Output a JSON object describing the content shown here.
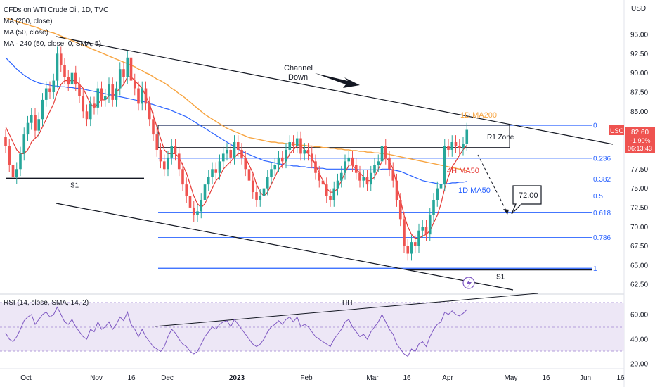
{
  "header": {
    "title": "CFDs on WTI Crude Oil, 1D, TVC",
    "indicators": [
      "MA (200, close)",
      "MA (50, close)",
      "MA · 240 (50, close, 0, SMA, 5)"
    ],
    "rsi_label": "RSI (14, close, SMA, 14, 2)"
  },
  "colors": {
    "up": "#26a69a",
    "down": "#ef5350",
    "ma200": "#f7a440",
    "ma50": "#2962ff",
    "ma4h": "#e53935",
    "fib": "#2962ff",
    "rsi": "#7e57c2",
    "rsi_band": "#ede7f6"
  },
  "annotations": {
    "channel": "Channel\nDown",
    "channel_line1": "Channel",
    "channel_line2": "Down",
    "r1_zone": "R1 Zone",
    "s1_left": "S1",
    "s1_right": "S1",
    "ma200_1d": "1D MA200",
    "ma50_4h": "4H MA50",
    "ma50_1d": "1D MA50",
    "target": "72.00",
    "hh": "HH"
  },
  "price_badge": {
    "symbol": "USOIL",
    "price": "82.60",
    "change": "-1.90%",
    "timer": "06:13:43"
  },
  "chart_data": {
    "type": "candlestick",
    "y_axis": {
      "unit": "USD",
      "ticks": [
        "95.00",
        "92.50",
        "90.00",
        "87.50",
        "85.00",
        "82.50",
        "80.00",
        "77.50",
        "75.00",
        "72.50",
        "70.00",
        "67.50",
        "65.00",
        "62.50"
      ]
    },
    "x_axis": {
      "ticks": [
        "Oct",
        "Nov",
        "16",
        "Dec",
        "2023",
        "Feb",
        "Mar",
        "16",
        "Apr",
        "May",
        "16",
        "Jun",
        "16"
      ]
    },
    "fib_levels": [
      {
        "label": "0",
        "value": 83.2
      },
      {
        "label": "0.236",
        "value": 78.9
      },
      {
        "label": "0.382",
        "value": 76.2
      },
      {
        "label": "0.5",
        "value": 74.0
      },
      {
        "label": "0.618",
        "value": 71.8
      },
      {
        "label": "0.786",
        "value": 68.6
      },
      {
        "label": "1",
        "value": 64.6
      }
    ],
    "r1_zone": [
      80.3,
      83.2
    ],
    "s1_left_level": 76.3,
    "s1_right_level": 64.4,
    "target_price": 72.0,
    "closes": [
      80.5,
      78.0,
      76.5,
      77.5,
      79.5,
      82.0,
      83.5,
      84.5,
      82.5,
      84.0,
      86.5,
      88.0,
      87.5,
      89.0,
      92.5,
      91.0,
      89.5,
      88.5,
      90.0,
      88.5,
      87.0,
      85.0,
      84.0,
      86.0,
      85.5,
      88.0,
      86.5,
      87.0,
      88.5,
      86.5,
      88.0,
      90.5,
      89.5,
      92.0,
      89.0,
      88.0,
      86.0,
      88.0,
      86.0,
      84.0,
      82.0,
      80.0,
      78.5,
      77.5,
      79.0,
      80.5,
      79.5,
      77.5,
      75.5,
      74.0,
      72.5,
      71.5,
      72.0,
      73.5,
      75.5,
      76.5,
      77.5,
      77.0,
      78.5,
      79.5,
      80.0,
      79.0,
      81.0,
      80.0,
      79.0,
      77.5,
      76.0,
      74.5,
      73.5,
      74.0,
      75.0,
      76.5,
      77.5,
      78.0,
      79.0,
      78.5,
      80.0,
      81.0,
      80.5,
      81.5,
      79.5,
      80.0,
      79.5,
      78.5,
      77.0,
      76.0,
      75.5,
      74.0,
      73.5,
      75.0,
      76.0,
      77.0,
      78.5,
      79.0,
      78.0,
      77.0,
      76.0,
      76.5,
      75.5,
      77.0,
      78.0,
      78.5,
      80.5,
      79.0,
      77.5,
      76.0,
      73.5,
      71.0,
      67.5,
      66.5,
      68.0,
      67.5,
      69.5,
      70.0,
      69.0,
      71.5,
      73.5,
      75.0,
      75.5,
      80.5,
      80.0,
      81.0,
      80.5,
      80.2,
      80.8,
      82.6
    ],
    "series": [
      {
        "name": "MA (200, close)",
        "values": [
          97.2,
          97.0,
          96.9,
          96.7,
          96.6,
          96.4,
          96.3,
          96.1,
          96.0,
          95.8,
          95.6,
          95.5,
          95.3,
          95.2,
          95.0,
          94.8,
          94.6,
          94.4,
          94.2,
          94.0,
          93.8,
          93.6,
          93.4,
          93.2,
          93.0,
          92.8,
          92.6,
          92.4,
          92.2,
          92.0,
          91.8,
          91.6,
          91.4,
          91.2,
          91.0,
          90.8,
          90.5,
          90.3,
          90.0,
          89.8,
          89.5,
          89.2,
          89.0,
          88.7,
          88.4,
          88.0,
          87.7,
          87.3,
          87.0,
          86.6,
          86.2,
          85.8,
          85.4,
          85.0,
          84.6,
          84.3,
          84.0,
          83.7,
          83.4,
          83.1,
          82.8,
          82.6,
          82.4,
          82.2,
          82.0,
          81.8,
          81.6,
          81.5,
          81.4,
          81.3,
          81.2,
          81.1,
          81.0,
          81.0,
          80.9,
          80.9,
          80.8,
          80.8,
          80.7,
          80.7,
          80.6,
          80.6,
          80.5,
          80.5,
          80.4,
          80.4,
          80.3,
          80.3,
          80.2,
          80.2,
          80.1,
          80.1,
          80.0,
          80.0,
          79.9,
          79.9,
          79.8,
          79.8,
          79.7,
          79.7,
          79.6,
          79.6,
          79.5,
          79.5,
          79.4,
          79.3,
          79.2,
          79.1,
          79.0,
          78.9,
          78.8,
          78.7,
          78.6,
          78.5,
          78.4,
          78.3,
          78.2,
          78.1,
          78.0,
          77.9,
          77.8,
          77.7,
          77.6,
          77.5,
          77.4,
          77.3
        ]
      },
      {
        "name": "MA (50, close)",
        "values": [
          92.0,
          91.5,
          91.0,
          90.5,
          90.1,
          89.7,
          89.4,
          89.1,
          88.9,
          88.7,
          88.6,
          88.5,
          88.4,
          88.3,
          88.3,
          88.2,
          88.2,
          88.1,
          88.1,
          88.0,
          88.0,
          87.9,
          87.8,
          87.7,
          87.6,
          87.5,
          87.4,
          87.3,
          87.2,
          87.1,
          87.0,
          86.9,
          86.8,
          86.7,
          86.6,
          86.5,
          86.4,
          86.3,
          86.2,
          86.0,
          85.9,
          85.7,
          85.6,
          85.4,
          85.3,
          85.1,
          84.9,
          84.7,
          84.5,
          84.3,
          84.0,
          83.7,
          83.4,
          83.1,
          82.8,
          82.5,
          82.2,
          81.9,
          81.6,
          81.3,
          81.0,
          80.7,
          80.4,
          80.1,
          79.8,
          79.6,
          79.4,
          79.2,
          79.0,
          78.8,
          78.6,
          78.5,
          78.4,
          78.3,
          78.2,
          78.1,
          78.0,
          78.0,
          77.9,
          77.9,
          77.8,
          77.8,
          77.7,
          77.7,
          77.6,
          77.6,
          77.6,
          77.5,
          77.5,
          77.5,
          77.5,
          77.5,
          77.5,
          77.5,
          77.5,
          77.5,
          77.4,
          77.4,
          77.4,
          77.4,
          77.4,
          77.4,
          77.5,
          77.5,
          77.5,
          77.4,
          77.3,
          77.2,
          77.0,
          76.8,
          76.6,
          76.4,
          76.2,
          76.0,
          75.9,
          75.8,
          75.7,
          75.6,
          75.5,
          75.6,
          75.6,
          75.7,
          75.7,
          75.8,
          75.8,
          75.9
        ]
      },
      {
        "name": "4H MA50",
        "values": [
          83.0,
          82.0,
          81.0,
          80.0,
          79.5,
          79.5,
          80.0,
          81.0,
          81.5,
          82.0,
          83.0,
          84.0,
          85.0,
          86.0,
          87.5,
          88.5,
          89.0,
          89.0,
          89.0,
          89.0,
          88.5,
          88.0,
          87.0,
          86.0,
          85.5,
          86.0,
          86.5,
          86.5,
          87.0,
          87.0,
          87.5,
          88.0,
          88.5,
          89.5,
          89.5,
          89.0,
          88.5,
          88.0,
          87.0,
          86.0,
          84.5,
          83.0,
          81.5,
          80.0,
          79.5,
          79.5,
          79.5,
          79.0,
          78.0,
          77.0,
          75.5,
          74.0,
          73.0,
          72.5,
          73.0,
          74.0,
          75.0,
          76.0,
          76.5,
          77.5,
          78.0,
          78.5,
          79.0,
          79.5,
          79.5,
          79.0,
          78.0,
          77.0,
          75.5,
          74.5,
          74.0,
          74.5,
          75.5,
          76.5,
          77.5,
          78.0,
          78.5,
          79.5,
          80.0,
          80.5,
          80.5,
          80.0,
          79.5,
          79.0,
          78.0,
          77.0,
          76.0,
          75.0,
          74.5,
          74.5,
          75.0,
          76.0,
          77.0,
          78.0,
          78.0,
          77.5,
          77.0,
          76.5,
          76.0,
          76.0,
          76.5,
          77.5,
          78.5,
          79.0,
          78.5,
          77.5,
          75.5,
          73.5,
          71.5,
          70.0,
          69.0,
          68.5,
          68.5,
          68.8,
          69.0,
          69.5,
          70.5,
          71.5,
          73.0,
          75.0,
          76.5,
          77.8,
          78.5,
          79.3,
          80.0,
          80.6
        ]
      },
      {
        "name": "RSI (14, close)",
        "values": [
          45,
          40,
          38,
          42,
          48,
          55,
          58,
          60,
          52,
          56,
          60,
          62,
          58,
          60,
          66,
          60,
          54,
          52,
          56,
          50,
          46,
          42,
          40,
          48,
          46,
          54,
          48,
          50,
          54,
          48,
          52,
          58,
          55,
          62,
          52,
          48,
          42,
          48,
          42,
          38,
          34,
          32,
          30,
          34,
          42,
          48,
          45,
          40,
          36,
          34,
          30,
          28,
          30,
          36,
          42,
          46,
          50,
          48,
          52,
          54,
          55,
          50,
          56,
          52,
          48,
          44,
          40,
          36,
          34,
          36,
          40,
          46,
          50,
          52,
          55,
          52,
          56,
          58,
          54,
          58,
          50,
          52,
          50,
          46,
          42,
          40,
          38,
          36,
          34,
          40,
          44,
          48,
          54,
          56,
          50,
          46,
          42,
          44,
          40,
          46,
          50,
          54,
          60,
          54,
          48,
          44,
          36,
          32,
          28,
          26,
          32,
          30,
          36,
          38,
          34,
          42,
          48,
          52,
          54,
          62,
          60,
          63,
          60,
          59,
          61,
          64
        ]
      }
    ],
    "rsi_axis": {
      "ticks": [
        "60.00",
        "40.00",
        "20.00"
      ]
    }
  }
}
